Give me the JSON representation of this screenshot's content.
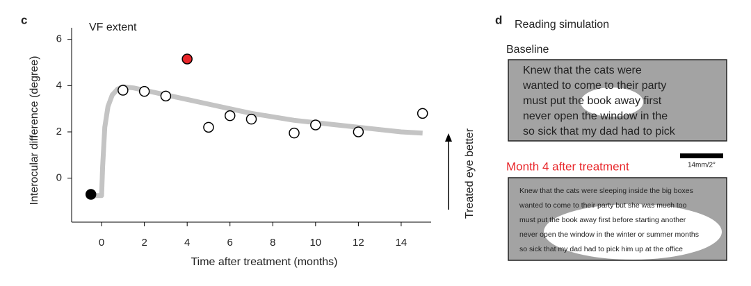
{
  "chart_data": {
    "type": "scatter",
    "panel_label": "c",
    "title": "VF extent",
    "x_label": "Time after treatment (months)",
    "y_label": "Interocular difference (degree)",
    "annotation": "Treated eye better",
    "points": {
      "x": [
        -0.5,
        1,
        2,
        3,
        4,
        5,
        6,
        7,
        9,
        10,
        12,
        15
      ],
      "y": [
        -0.7,
        3.8,
        3.75,
        3.55,
        5.15,
        2.2,
        2.7,
        2.55,
        1.95,
        2.3,
        2.0,
        2.8
      ],
      "fill": [
        "#000000",
        "#ffffff",
        "#ffffff",
        "#ffffff",
        "#e8262a",
        "#ffffff",
        "#ffffff",
        "#ffffff",
        "#ffffff",
        "#ffffff",
        "#ffffff",
        "#ffffff"
      ]
    },
    "fit": {
      "color": "#c4c4c4",
      "x": [
        -0.5,
        0,
        0.05,
        0.15,
        0.3,
        0.5,
        0.75,
        1,
        1.5,
        2,
        3,
        4,
        5,
        6,
        7,
        8,
        9,
        10,
        11,
        12,
        13,
        14,
        15
      ],
      "y": [
        -0.75,
        -0.75,
        0.5,
        2.2,
        3.1,
        3.6,
        3.85,
        3.95,
        3.9,
        3.8,
        3.6,
        3.4,
        3.2,
        3.0,
        2.8,
        2.65,
        2.5,
        2.4,
        2.3,
        2.2,
        2.1,
        2.0,
        1.95
      ]
    },
    "xlim": [
      -1.4,
      15.4
    ],
    "ylim": [
      -1.9,
      6.5
    ],
    "xticks": [
      0,
      2,
      4,
      6,
      8,
      10,
      12,
      14
    ],
    "yticks": [
      0,
      2,
      4,
      6
    ]
  },
  "reading_panel": {
    "label": "d",
    "title": "Reading simulation",
    "baseline": {
      "title": "Baseline",
      "lines": [
        "Knew that the cats were",
        "wanted to come to their party",
        "must put the book away first",
        "never open the window in the",
        "so sick that my dad had to pick"
      ]
    },
    "scale_bar": "14mm/2°",
    "month4": {
      "title": "Month 4 after treatment",
      "lines": [
        "Knew that the cats were sleeping inside the big boxes",
        "wanted to come to their party but she was much too",
        "must put the book away first before starting another",
        "never open the window in the winter or summer months",
        "so sick that my dad had to pick him up at the office"
      ]
    }
  }
}
